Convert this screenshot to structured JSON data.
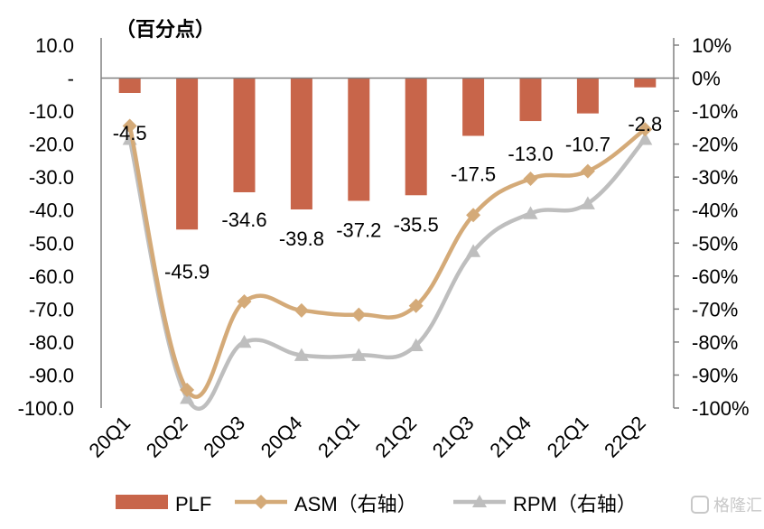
{
  "chart_data": {
    "type": "bar",
    "unit_label": "（百分点）",
    "categories": [
      "20Q1",
      "20Q2",
      "20Q3",
      "20Q4",
      "21Q1",
      "21Q2",
      "21Q3",
      "21Q4",
      "22Q1",
      "22Q2"
    ],
    "series": [
      {
        "name": "PLF",
        "type": "bar",
        "axis": "left",
        "color": "#C8654A",
        "values": [
          -4.5,
          -45.9,
          -34.6,
          -39.8,
          -37.2,
          -35.5,
          -17.5,
          -13.0,
          -10.7,
          -2.8
        ],
        "labels": [
          "-4.5",
          "-45.9",
          "-34.6",
          "-39.8",
          "-37.2",
          "-35.5",
          "-17.5",
          "-13.0",
          "-10.7",
          "-2.8"
        ]
      },
      {
        "name": "ASM（右轴）",
        "type": "line",
        "axis": "right",
        "color": "#D4AA78",
        "marker": "diamond",
        "values": [
          -14.5,
          -94.5,
          -67.7,
          -70.4,
          -71.7,
          -69.0,
          -41.5,
          -30.5,
          -28.2,
          -15.5
        ]
      },
      {
        "name": "RPM（右轴）",
        "type": "line",
        "axis": "right",
        "color": "#BEBEBE",
        "marker": "triangle",
        "values": [
          -18.5,
          -97.0,
          -80.0,
          -84.0,
          -84.0,
          -81.0,
          -52.5,
          -41.0,
          -38.0,
          -18.5
        ]
      }
    ],
    "y_left": {
      "range": [
        -100,
        10
      ],
      "ticks": [
        "10.0",
        "-",
        "-10.0",
        "-20.0",
        "-30.0",
        "-40.0",
        "-50.0",
        "-60.0",
        "-70.0",
        "-80.0",
        "-90.0",
        "-100.0"
      ]
    },
    "y_right": {
      "range": [
        -100,
        10
      ],
      "ticks": [
        "10%",
        "0%",
        "-10%",
        "-20%",
        "-30%",
        "-40%",
        "-50%",
        "-60%",
        "-70%",
        "-80%",
        "-90%",
        "-100%"
      ]
    },
    "grid": false,
    "legend_position": "bottom",
    "watermark": "格隆汇"
  }
}
